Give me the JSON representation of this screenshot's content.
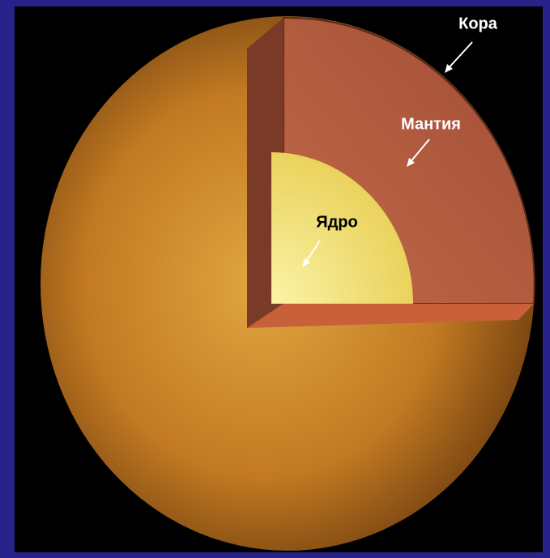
{
  "labels": {
    "crust": "Кора",
    "mantle": "Мантия",
    "core": "Ядро"
  }
}
